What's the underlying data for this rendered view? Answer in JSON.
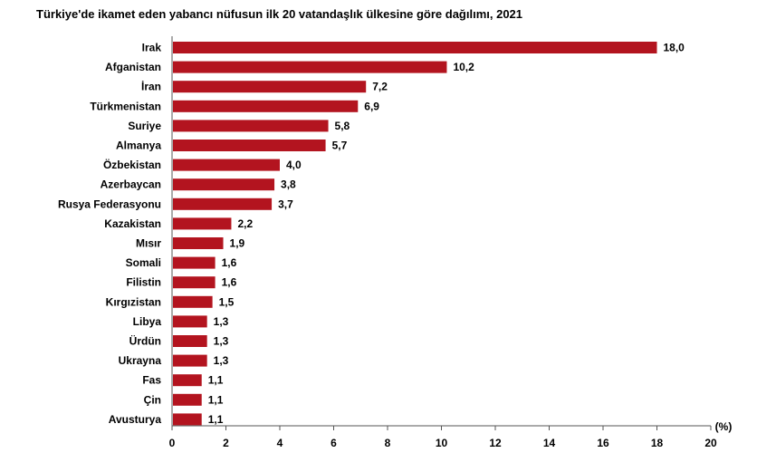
{
  "chart_data": {
    "type": "bar",
    "orientation": "horizontal",
    "title": "Türkiye'de ikamet eden yabancı nüfusun ilk 20 vatandaşlık ülkesine göre dağılımı, 2021",
    "xlabel": "(%)",
    "ylabel": "",
    "xlim": [
      0,
      20
    ],
    "xticks": [
      "0",
      "2",
      "4",
      "6",
      "8",
      "10",
      "12",
      "14",
      "16",
      "18",
      "20"
    ],
    "grid": false,
    "bar_color": "#b3141f",
    "categories": [
      "Irak",
      "Afganistan",
      "İran",
      "Türkmenistan",
      "Suriye",
      "Almanya",
      "Özbekistan",
      "Azerbaycan",
      "Rusya Federasyonu",
      "Kazakistan",
      "Mısır",
      "Somali",
      "Filistin",
      "Kırgızistan",
      "Libya",
      "Ürdün",
      "Ukrayna",
      "Fas",
      "Çin",
      "Avusturya"
    ],
    "values": [
      18.0,
      10.2,
      7.2,
      6.9,
      5.8,
      5.7,
      4.0,
      3.8,
      3.7,
      2.2,
      1.9,
      1.6,
      1.6,
      1.5,
      1.3,
      1.3,
      1.3,
      1.1,
      1.1,
      1.1
    ],
    "value_labels": [
      "18,0",
      "10,2",
      "7,2",
      "6,9",
      "5,8",
      "5,7",
      "4,0",
      "3,8",
      "3,7",
      "2,2",
      "1,9",
      "1,6",
      "1,6",
      "1,5",
      "1,3",
      "1,3",
      "1,3",
      "1,1",
      "1,1",
      "1,1"
    ]
  }
}
